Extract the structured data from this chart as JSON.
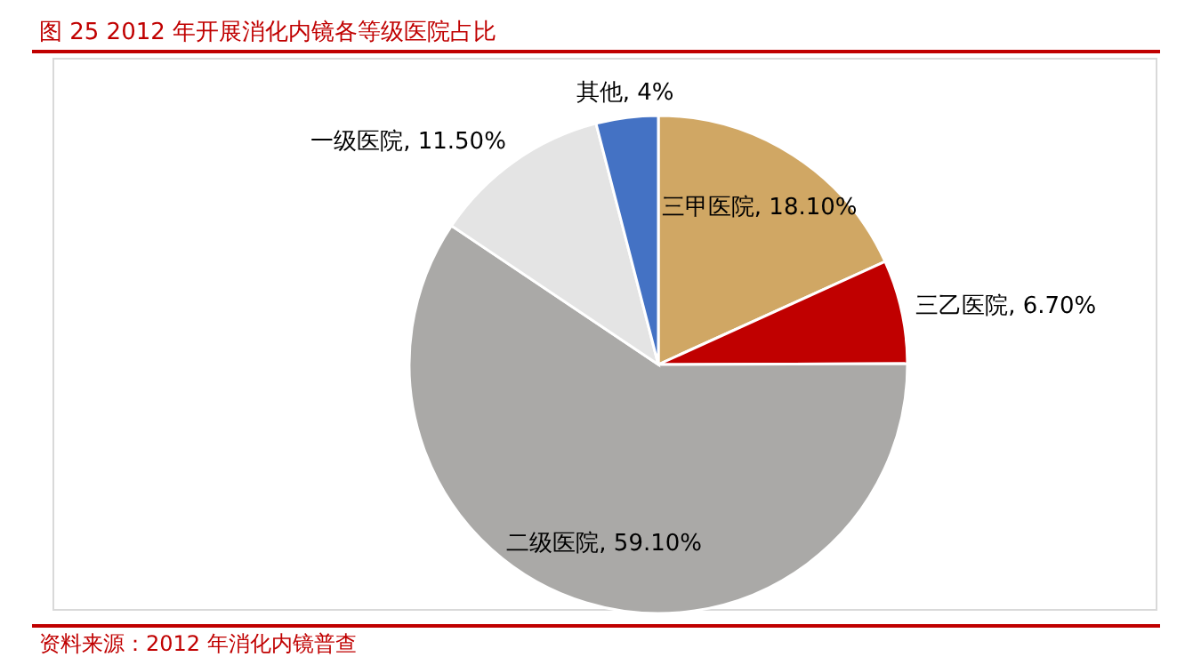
{
  "chart_data": {
    "type": "pie",
    "title": "图 25   2012 年开展消化内镜各等级医院占比",
    "categories": [
      "三甲医院",
      "三乙医院",
      "二级医院",
      "一级医院",
      "其他"
    ],
    "values": [
      18.1,
      6.7,
      59.1,
      11.5,
      4
    ],
    "colors": [
      "#d0a764",
      "#c00000",
      "#aaa9a7",
      "#e4e4e4",
      "#4472c4"
    ],
    "value_labels": [
      "18.10%",
      "6.70%",
      "59.10%",
      "11.50%",
      "4%"
    ],
    "annotations": [
      "资料来源：2012 年消化内镜普查"
    ]
  }
}
